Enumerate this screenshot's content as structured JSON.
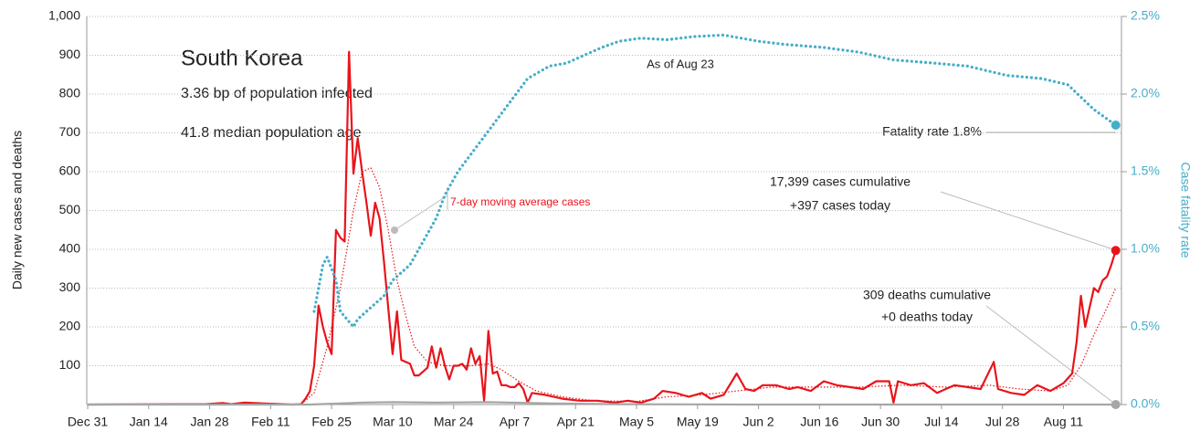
{
  "chart_data": {
    "type": "line",
    "title": "South Korea",
    "subtitle": [
      "3.36 bp of population infected",
      "41.8 median population age"
    ],
    "y_label": "Daily new cases and deaths",
    "y2_label": "Case fatality rate",
    "annotations": {
      "as_of": "As of Aug 23",
      "fatality": "Fatality rate 1.8%",
      "cases": [
        "17,399 cases cumulative",
        "+397 cases today"
      ],
      "deaths": [
        "309 deaths cumulative",
        "+0 deaths today"
      ]
    },
    "ylim": [
      0,
      1000
    ],
    "yticks": [
      100,
      200,
      300,
      400,
      500,
      600,
      700,
      800,
      900,
      {
        "value": 1000,
        "label": "1,000"
      }
    ],
    "y2lim": [
      0,
      2.5
    ],
    "y2ticks": [
      {
        "value": 0,
        "label": "0.0%"
      },
      {
        "value": 0.5,
        "label": "0.5%"
      },
      {
        "value": 1,
        "label": "1.0%"
      },
      {
        "value": 1.5,
        "label": "1.5%"
      },
      {
        "value": 2,
        "label": "2.0%"
      },
      {
        "value": 2.5,
        "label": "2.5%"
      }
    ],
    "xticks": [
      "Dec 31",
      "Jan 14",
      "Jan 28",
      "Feb 11",
      "Feb 25",
      "Mar 10",
      "Mar 24",
      "Apr 7",
      "Apr 21",
      "May 5",
      "May 19",
      "Jun 2",
      "Jun 16",
      "Jun 30",
      "Jul 14",
      "Jul 28",
      "Aug 11"
    ],
    "grid": true,
    "series": [
      {
        "color": "#e8141b",
        "style": "solid",
        "x": [
          "Dec 31",
          "Jan 20",
          "Jan 24",
          "Jan 27",
          "Jan 31",
          "Feb 2",
          "Feb 5",
          "Feb 9",
          "Feb 16",
          "Feb 18",
          "Feb 19",
          "Feb 20",
          "Feb 21",
          "Feb 22",
          "Feb 23",
          "Feb 24",
          "Feb 25",
          "Feb 26",
          "Feb 27",
          "Feb 28",
          "Feb 29",
          "Mar 1",
          "Mar 2",
          "Mar 3",
          "Mar 4",
          "Mar 5",
          "Mar 6",
          "Mar 7",
          "Mar 8",
          "Mar 9",
          "Mar 10",
          "Mar 11",
          "Mar 12",
          "Mar 13",
          "Mar 14",
          "Mar 15",
          "Mar 16",
          "Mar 17",
          "Mar 18",
          "Mar 19",
          "Mar 20",
          "Mar 21",
          "Mar 22",
          "Mar 23",
          "Mar 24",
          "Mar 25",
          "Mar 26",
          "Mar 27",
          "Mar 28",
          "Mar 29",
          "Mar 30",
          "Mar 31",
          "Apr 1",
          "Apr 2",
          "Apr 3",
          "Apr 4",
          "Apr 5",
          "Apr 6",
          "Apr 7",
          "Apr 8",
          "Apr 9",
          "Apr 10",
          "Apr 11",
          "Apr 14",
          "Apr 18",
          "Apr 22",
          "Apr 26",
          "Apr 30",
          "May 3",
          "May 6",
          "May 9",
          "May 11",
          "May 14",
          "May 17",
          "May 20",
          "May 22",
          "May 25",
          "May 28",
          "May 30",
          "Jun 1",
          "Jun 3",
          "Jun 6",
          "Jun 9",
          "Jun 11",
          "Jun 14",
          "Jun 17",
          "Jun 20",
          "Jun 23",
          "Jun 26",
          "Jun 29",
          "Jul 2",
          "Jul 3",
          "Jul 4",
          "Jul 7",
          "Jul 10",
          "Jul 13",
          "Jul 17",
          "Jul 20",
          "Jul 23",
          "Jul 26",
          "Jul 27",
          "Jul 30",
          "Aug 2",
          "Aug 5",
          "Aug 8",
          "Aug 11",
          "Aug 13",
          "Aug 14",
          "Aug 15",
          "Aug 16",
          "Aug 17",
          "Aug 18",
          "Aug 19",
          "Aug 20",
          "Aug 21",
          "Aug 22",
          "Aug 23"
        ],
        "values": [
          0,
          1,
          1,
          1,
          4,
          1,
          5,
          3,
          0,
          1,
          15,
          34,
          100,
          255,
          200,
          160,
          130,
          450,
          430,
          420,
          909,
          595,
          686,
          600,
          520,
          435,
          520,
          480,
          370,
          250,
          130,
          240,
          115,
          110,
          105,
          75,
          75,
          85,
          95,
          150,
          95,
          145,
          100,
          65,
          100,
          100,
          105,
          90,
          145,
          105,
          125,
          10,
          190,
          80,
          85,
          50,
          50,
          45,
          45,
          55,
          40,
          5,
          30,
          25,
          15,
          10,
          10,
          5,
          10,
          5,
          15,
          35,
          30,
          20,
          30,
          15,
          25,
          80,
          40,
          35,
          50,
          50,
          40,
          45,
          35,
          60,
          50,
          45,
          40,
          60,
          60,
          5,
          60,
          50,
          55,
          30,
          50,
          45,
          40,
          110,
          40,
          30,
          25,
          50,
          35,
          55,
          80,
          160,
          280,
          200,
          250,
          300,
          290,
          320,
          330,
          360,
          397
        ]
      },
      {
        "name": "7-day moving average cases",
        "color": "#e8141b",
        "style": "dotted-thin",
        "x": [
          "Dec 31",
          "Feb 18",
          "Feb 21",
          "Feb 24",
          "Feb 27",
          "Mar 1",
          "Mar 3",
          "Mar 5",
          "Mar 7",
          "Mar 9",
          "Mar 11",
          "Mar 13",
          "Mar 15",
          "Mar 18",
          "Mar 22",
          "Mar 28",
          "Apr 1",
          "Apr 4",
          "Apr 8",
          "Apr 12",
          "Apr 18",
          "Apr 25",
          "May 5",
          "May 12",
          "May 20",
          "May 28",
          "Jun 5",
          "Jun 15",
          "Jun 25",
          "Jul 5",
          "Jul 15",
          "Jul 25",
          "Aug 1",
          "Aug 8",
          "Aug 12",
          "Aug 15",
          "Aug 18",
          "Aug 21",
          "Aug 23"
        ],
        "values": [
          0,
          1,
          30,
          150,
          300,
          500,
          600,
          610,
          560,
          450,
          320,
          230,
          150,
          110,
          100,
          100,
          105,
          90,
          60,
          35,
          20,
          10,
          8,
          20,
          25,
          35,
          45,
          45,
          45,
          50,
          45,
          50,
          40,
          35,
          50,
          100,
          180,
          250,
          300
        ]
      },
      {
        "color": "#a6a6a6",
        "style": "solid",
        "x": [
          "Dec 31",
          "Feb 20",
          "Feb 25",
          "Mar 3",
          "Mar 10",
          "Mar 20",
          "Apr 1",
          "Apr 15",
          "May 1",
          "Jun 1",
          "Aug 23"
        ],
        "values": [
          0,
          0,
          2,
          5,
          6,
          5,
          6,
          3,
          1,
          0,
          0
        ]
      },
      {
        "color": "#45aec8",
        "style": "dotted",
        "axis": "y2",
        "x": [
          "Feb 21",
          "Feb 22",
          "Feb 23",
          "Feb 24",
          "Feb 26",
          "Feb 27",
          "Mar 1",
          "Mar 2",
          "Mar 4",
          "Mar 6",
          "Mar 8",
          "Mar 10",
          "Mar 12",
          "Mar 14",
          "Mar 16",
          "Mar 18",
          "Mar 20",
          "Mar 22",
          "Mar 25",
          "Mar 29",
          "Apr 2",
          "Apr 6",
          "Apr 10",
          "Apr 15",
          "Apr 19",
          "Apr 23",
          "Apr 27",
          "May 1",
          "May 6",
          "May 12",
          "May 18",
          "May 25",
          "May 27",
          "Jun 2",
          "Jun 8",
          "Jun 17",
          "Jun 25",
          "Jul 3",
          "Jul 12",
          "Jul 20",
          "Jul 29",
          "Aug 6",
          "Aug 12",
          "Aug 18",
          "Aug 23"
        ],
        "values": [
          0.6,
          0.75,
          0.9,
          0.95,
          0.8,
          0.6,
          0.5,
          0.55,
          0.6,
          0.65,
          0.7,
          0.8,
          0.85,
          0.9,
          1.0,
          1.1,
          1.2,
          1.35,
          1.5,
          1.65,
          1.8,
          1.95,
          2.1,
          2.18,
          2.2,
          2.25,
          2.3,
          2.34,
          2.36,
          2.35,
          2.37,
          2.38,
          2.37,
          2.34,
          2.32,
          2.3,
          2.27,
          2.22,
          2.2,
          2.18,
          2.12,
          2.1,
          2.06,
          1.9,
          1.8
        ]
      }
    ]
  }
}
